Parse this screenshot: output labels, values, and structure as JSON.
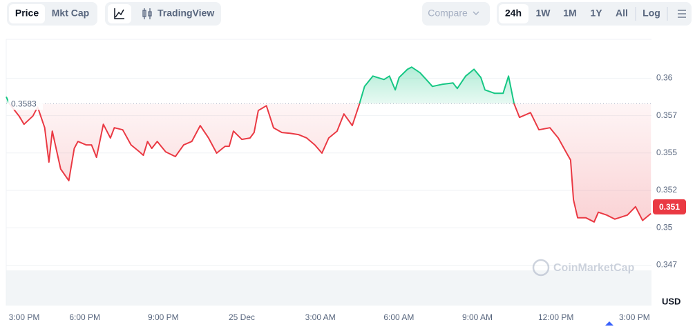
{
  "toolbar": {
    "views": [
      "Price",
      "Mkt Cap"
    ],
    "tools": [
      "TradingView"
    ],
    "compare": "Compare",
    "ranges": [
      "24h",
      "1W",
      "1M",
      "1Y",
      "All"
    ],
    "log": "Log"
  },
  "chart_data": {
    "type": "line",
    "y_unit": "USD",
    "watermark": "CoinMarketCap",
    "up_color": "#16c784",
    "down_color": "#ea3943",
    "baseline": 0.3583,
    "current_price": {
      "value": 0.3514,
      "label": "0.351"
    },
    "x": [
      0,
      0.12,
      0.49,
      0.68,
      1.02,
      1.2,
      1.47,
      1.63,
      1.76,
      2.08,
      2.39,
      2.6,
      2.74,
      3.05,
      3.26,
      3.45,
      3.71,
      3.98,
      4.13,
      4.45,
      4.77,
      5.09,
      5.24,
      5.4,
      5.56,
      5.77,
      6.09,
      6.46,
      6.78,
      7.09,
      7.41,
      7.73,
      8.04,
      8.36,
      8.52,
      8.68,
      9,
      9.31,
      9.47,
      9.63,
      9.94,
      10.21,
      10.53,
      10.84,
      11.16,
      11.48,
      11.79,
      12.06,
      12.32,
      12.64,
      12.9,
      13.22,
      13.48,
      13.69,
      14.01,
      14.43,
      14.64,
      14.86,
      15.01,
      15.33,
      15.49,
      15.81,
      16.12,
      16.28,
      16.65,
      17.07,
      17.23,
      17.55,
      17.87,
      18.13,
      18.29,
      18.66,
      18.98,
      19.19,
      19.4,
      19.61,
      20.03,
      20.35,
      20.77,
      21.09,
      21.41,
      21.56,
      21.67,
      21.83,
      22.14,
      22.46,
      22.62,
      22.94,
      23.25,
      23.73,
      24.04,
      24.31,
      24.63
    ],
    "values": [
      0.35876,
      0.3583,
      0.35747,
      0.35692,
      0.35747,
      0.35807,
      0.35669,
      0.35439,
      0.35646,
      0.35393,
      0.35315,
      0.35531,
      0.35577,
      0.35554,
      0.35554,
      0.35471,
      0.35692,
      0.356,
      0.35669,
      0.35655,
      0.35554,
      0.35508,
      0.35485,
      0.35577,
      0.35531,
      0.35577,
      0.35508,
      0.35476,
      0.35554,
      0.35577,
      0.35683,
      0.356,
      0.35499,
      0.35545,
      0.35545,
      0.35646,
      0.35591,
      0.356,
      0.35637,
      0.35784,
      0.35816,
      0.35669,
      0.35637,
      0.35632,
      0.35623,
      0.356,
      0.35554,
      0.35499,
      0.356,
      0.35646,
      0.35761,
      0.35683,
      0.35821,
      0.35945,
      0.36014,
      0.35991,
      0.36014,
      0.35922,
      0.36005,
      0.3606,
      0.36074,
      0.36037,
      0.35977,
      0.35945,
      0.35959,
      0.35968,
      0.35931,
      0.36014,
      0.3606,
      0.36005,
      0.35922,
      0.35899,
      0.35899,
      0.36014,
      0.3583,
      0.35738,
      0.3577,
      0.35655,
      0.35669,
      0.356,
      0.35499,
      0.35453,
      0.35187,
      0.35067,
      0.35067,
      0.35039,
      0.35104,
      0.35085,
      0.35058,
      0.35085,
      0.35141,
      0.35049,
      0.35095
    ],
    "xlim": [
      0,
      24.65
    ],
    "xticks": [
      {
        "value": 0,
        "label": "3:00 PM"
      },
      {
        "value": 3,
        "label": "6:00 PM"
      },
      {
        "value": 6,
        "label": "9:00 PM"
      },
      {
        "value": 9,
        "label": "25 Dec"
      },
      {
        "value": 12,
        "label": "3:00 AM"
      },
      {
        "value": 15,
        "label": "6:00 AM"
      },
      {
        "value": 18,
        "label": "9:00 AM"
      },
      {
        "value": 21,
        "label": "12:00 PM"
      },
      {
        "value": 24,
        "label": "3:00 PM"
      }
    ],
    "ylim": [
      0.3448,
      0.3626
    ],
    "yticks": [
      0.36,
      {
        "value": 0.3575,
        "label": "0.357"
      },
      0.355,
      {
        "value": 0.3525,
        "label": "0.352"
      },
      0.35,
      {
        "value": 0.3475,
        "label": "0.347"
      }
    ],
    "grid": true
  }
}
